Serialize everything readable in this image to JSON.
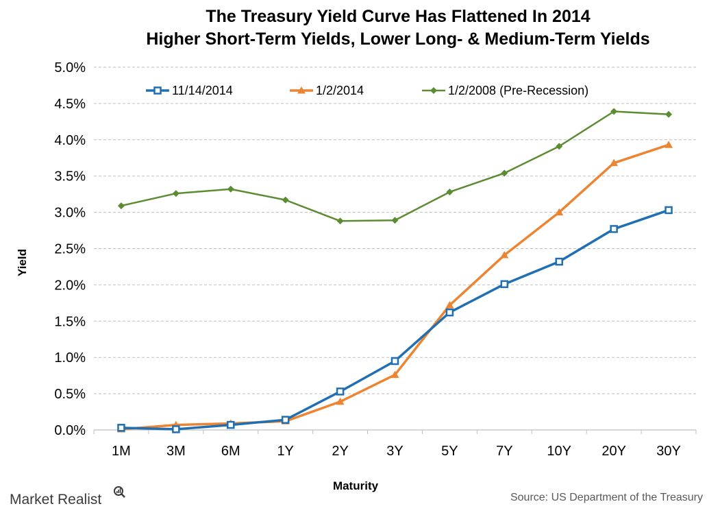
{
  "chart_data": {
    "type": "line",
    "title": "The Treasury Yield Curve Has Flattened In 2014",
    "subtitle": "Higher Short-Term Yields, Lower Long- & Medium-Term Yields",
    "xlabel": "Maturity",
    "ylabel": "Yield",
    "categories": [
      "1M",
      "3M",
      "6M",
      "1Y",
      "2Y",
      "3Y",
      "5Y",
      "7Y",
      "10Y",
      "20Y",
      "30Y"
    ],
    "ylim": [
      0,
      5.0
    ],
    "yticks": [
      0,
      0.5,
      1.0,
      1.5,
      2.0,
      2.5,
      3.0,
      3.5,
      4.0,
      4.5,
      5.0
    ],
    "ytick_labels": [
      "0.0%",
      "0.5%",
      "1.0%",
      "1.5%",
      "2.0%",
      "2.5%",
      "3.0%",
      "3.5%",
      "4.0%",
      "4.5%",
      "5.0%"
    ],
    "grid": "horizontal dashed",
    "legend_position": "top",
    "series": [
      {
        "name": "11/14/2014",
        "color": "#1f6fb2",
        "marker": "square",
        "values": [
          0.03,
          0.01,
          0.07,
          0.14,
          0.53,
          0.95,
          1.62,
          2.01,
          2.32,
          2.77,
          3.03
        ]
      },
      {
        "name": "1/2/2014",
        "color": "#ec8432",
        "marker": "triangle",
        "values": [
          0.01,
          0.07,
          0.09,
          0.12,
          0.39,
          0.76,
          1.72,
          2.41,
          3.0,
          3.68,
          3.93
        ]
      },
      {
        "name": "1/2/2008 (Pre-Recession)",
        "color": "#5b8c32",
        "marker": "diamond",
        "values": [
          3.09,
          3.26,
          3.32,
          3.17,
          2.88,
          2.89,
          3.28,
          3.54,
          3.91,
          4.39,
          4.35
        ]
      }
    ]
  },
  "footer": {
    "source": "Source: US Department of the Treasury",
    "brand": "Market Realist"
  }
}
